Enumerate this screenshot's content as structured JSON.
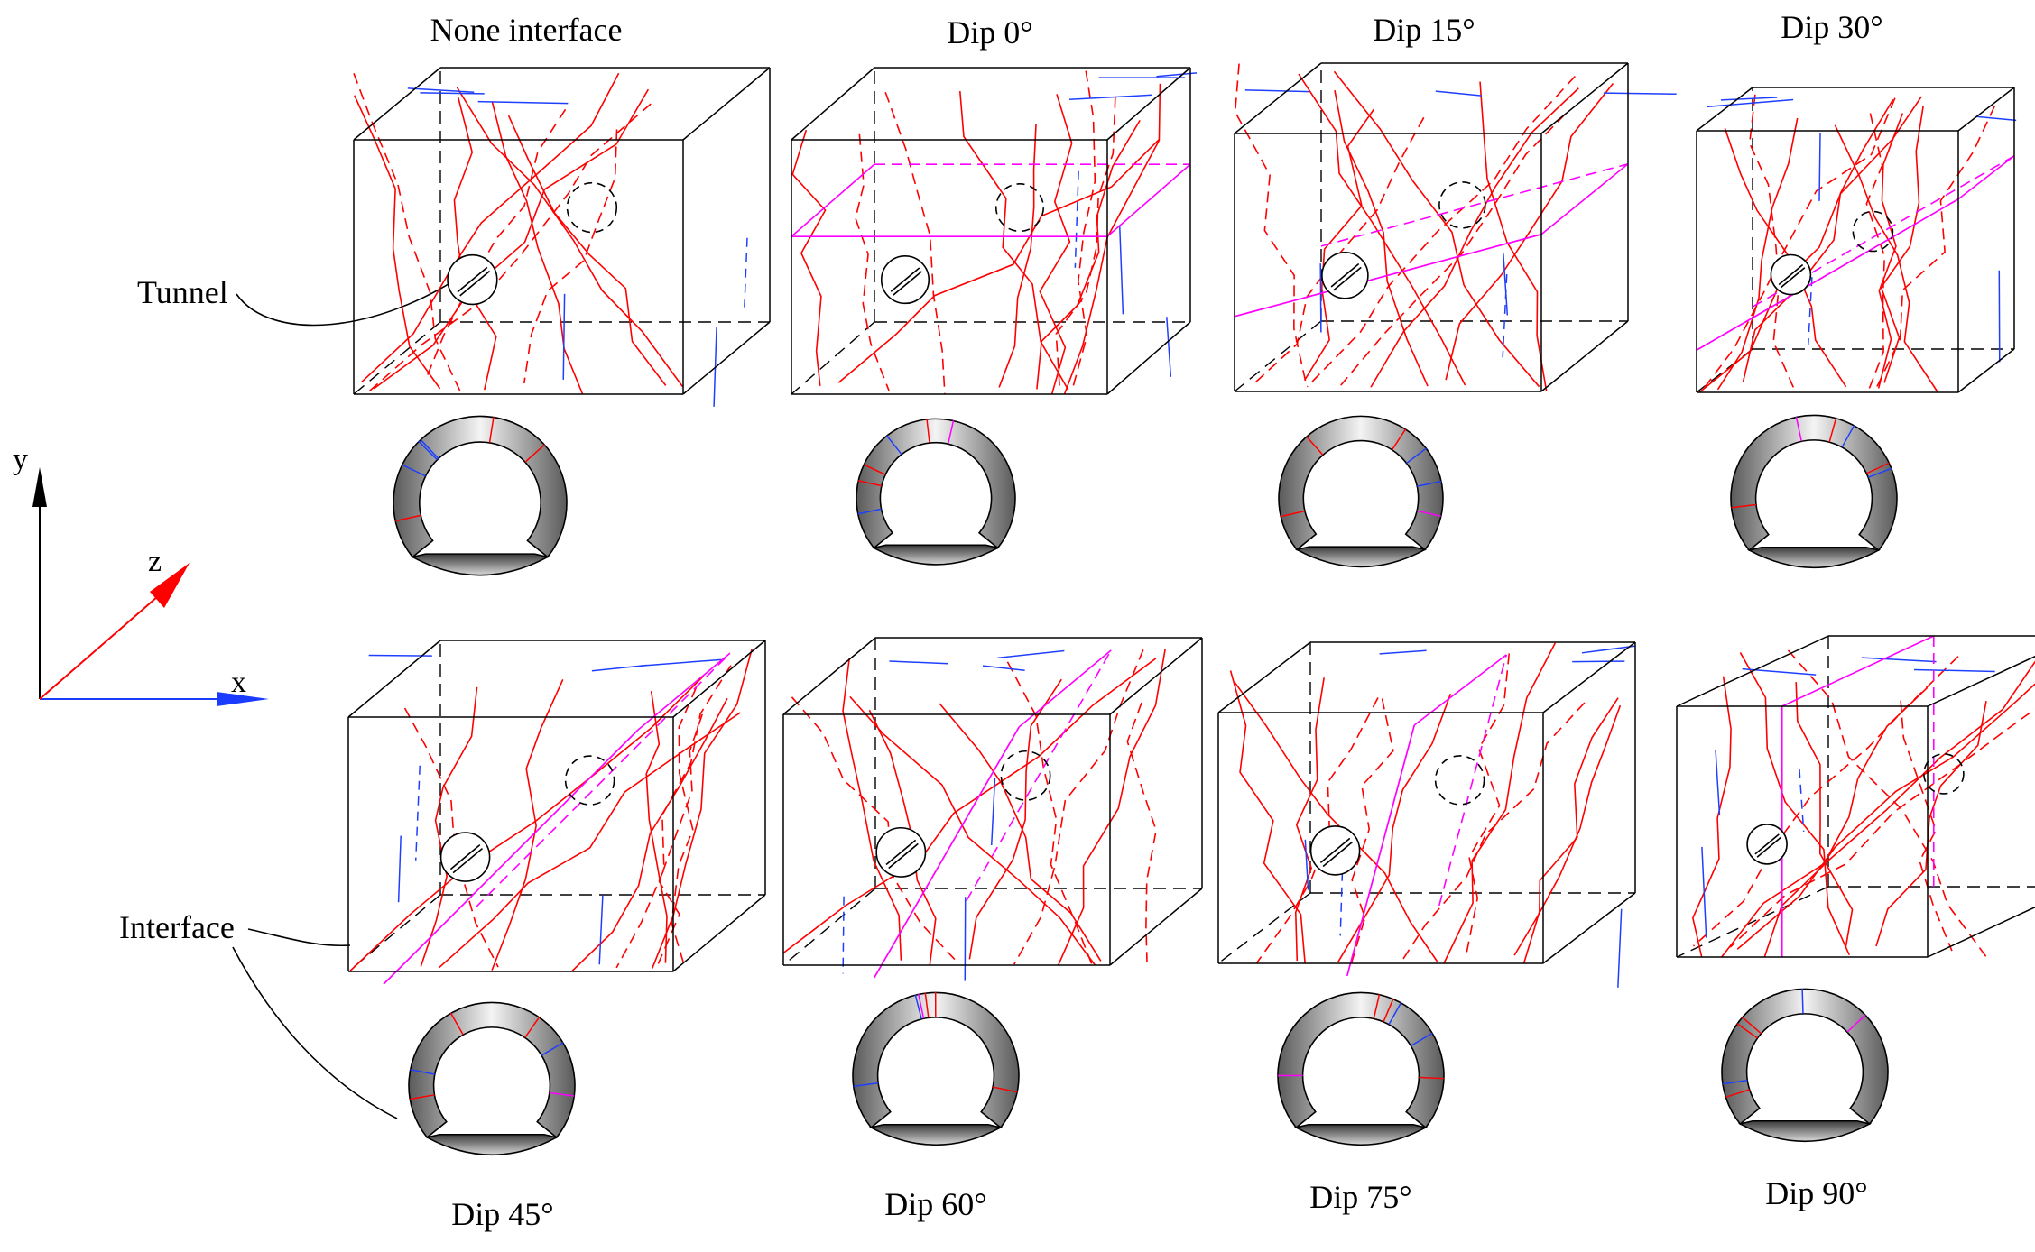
{
  "labels": {
    "none_interface": "None interface",
    "dip_0": "Dip 0°",
    "dip_15": "Dip 15°",
    "dip_30": "Dip 30°",
    "dip_45": "Dip 45°",
    "dip_60": "Dip 60°",
    "dip_75": "Dip 75°",
    "dip_90": "Dip 90°",
    "tunnel": "Tunnel",
    "interface": "Interface"
  },
  "axes": {
    "x": "x",
    "y": "y",
    "z": "z"
  },
  "colors": {
    "crack_red": "#ff0000",
    "crack_blue": "#1f3fff",
    "interface_magenta": "#ff00ff",
    "edge": "#000000",
    "z_axis": "#ff0000",
    "x_axis": "#1a3cff",
    "y_axis": "#000000"
  },
  "panels": [
    {
      "label_key": "none_interface",
      "interface_dip": null
    },
    {
      "label_key": "dip_0",
      "interface_dip": 0
    },
    {
      "label_key": "dip_15",
      "interface_dip": 15
    },
    {
      "label_key": "dip_30",
      "interface_dip": 30
    },
    {
      "label_key": "dip_45",
      "interface_dip": 45
    },
    {
      "label_key": "dip_60",
      "interface_dip": 60
    },
    {
      "label_key": "dip_75",
      "interface_dip": 75
    },
    {
      "label_key": "dip_90",
      "interface_dip": 90
    }
  ]
}
